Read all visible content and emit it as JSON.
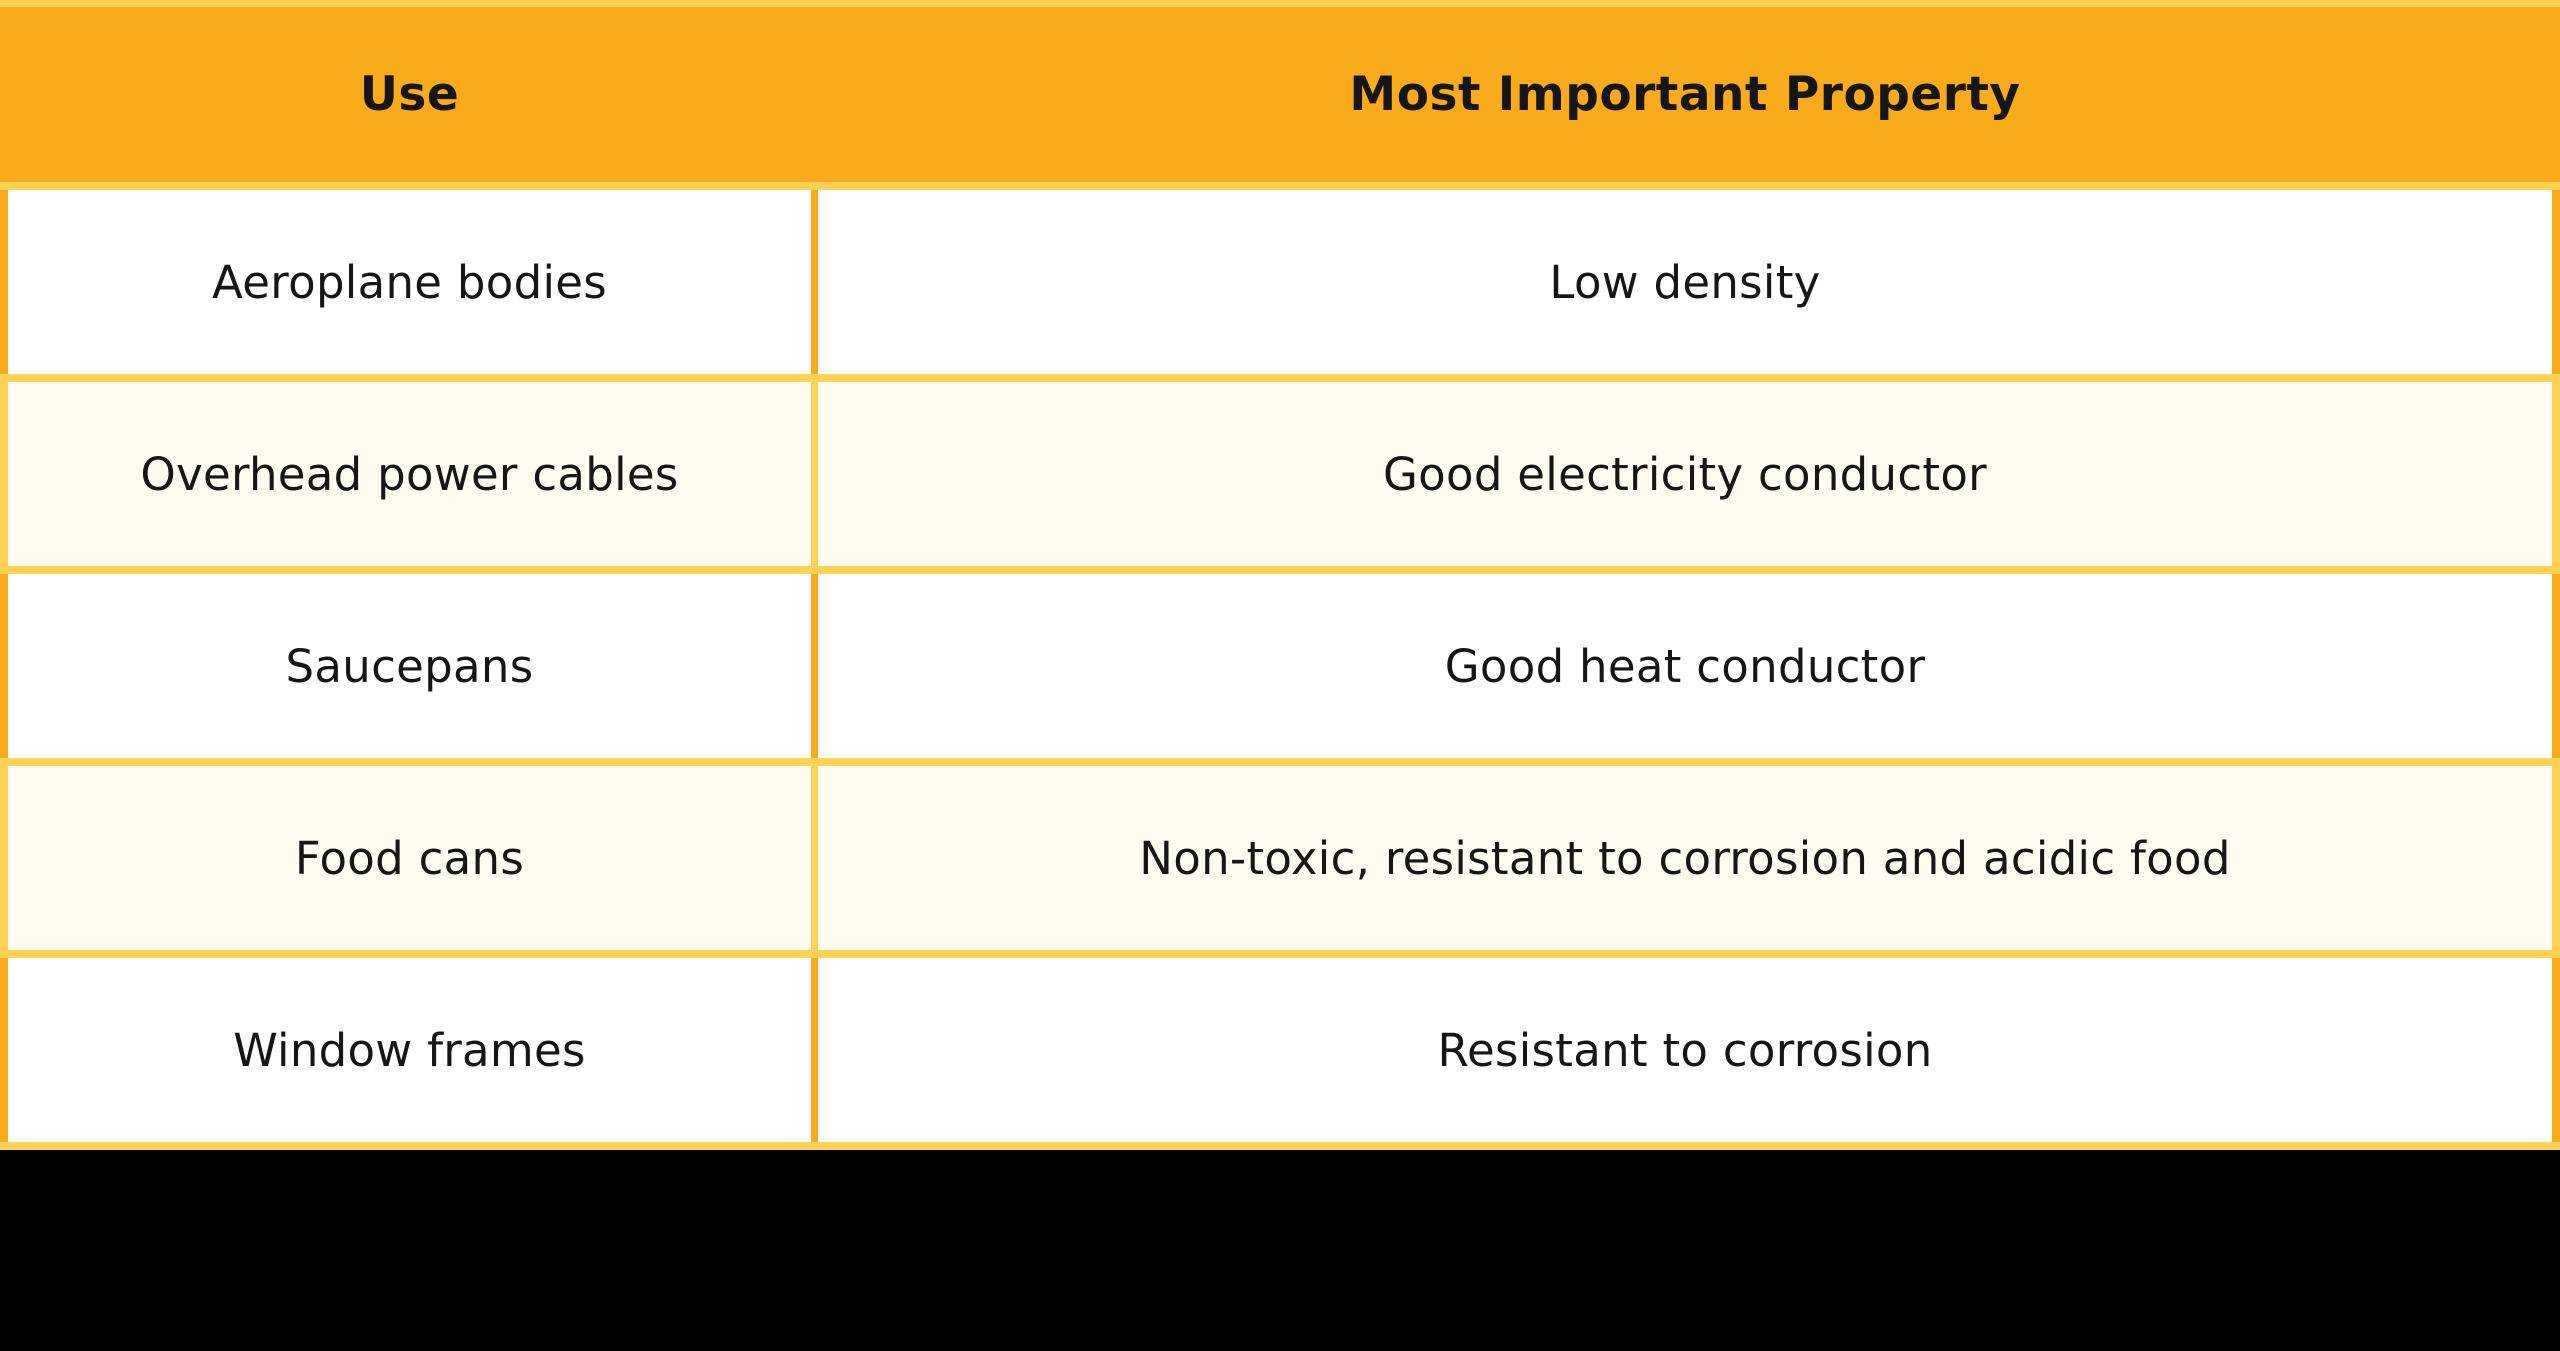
{
  "colors": {
    "header_bg": "#F9AB1C",
    "grid_yellow": "#FFD255",
    "row_white": "#FFFFFF",
    "row_cream": "#FFFBF1",
    "text": "#161616",
    "footer_black": "#000000"
  },
  "table": {
    "headers": [
      {
        "label": "Use"
      },
      {
        "label": "Most Important Property"
      }
    ],
    "rows": [
      {
        "use": "Aeroplane bodies",
        "property": "Low density"
      },
      {
        "use": "Overhead power cables",
        "property": "Good electricity conductor"
      },
      {
        "use": "Saucepans",
        "property": "Good heat conductor"
      },
      {
        "use": "Food cans",
        "property": "Non-toxic, resistant to corrosion and acidic food"
      },
      {
        "use": "Window frames",
        "property": "Resistant to corrosion"
      }
    ]
  }
}
